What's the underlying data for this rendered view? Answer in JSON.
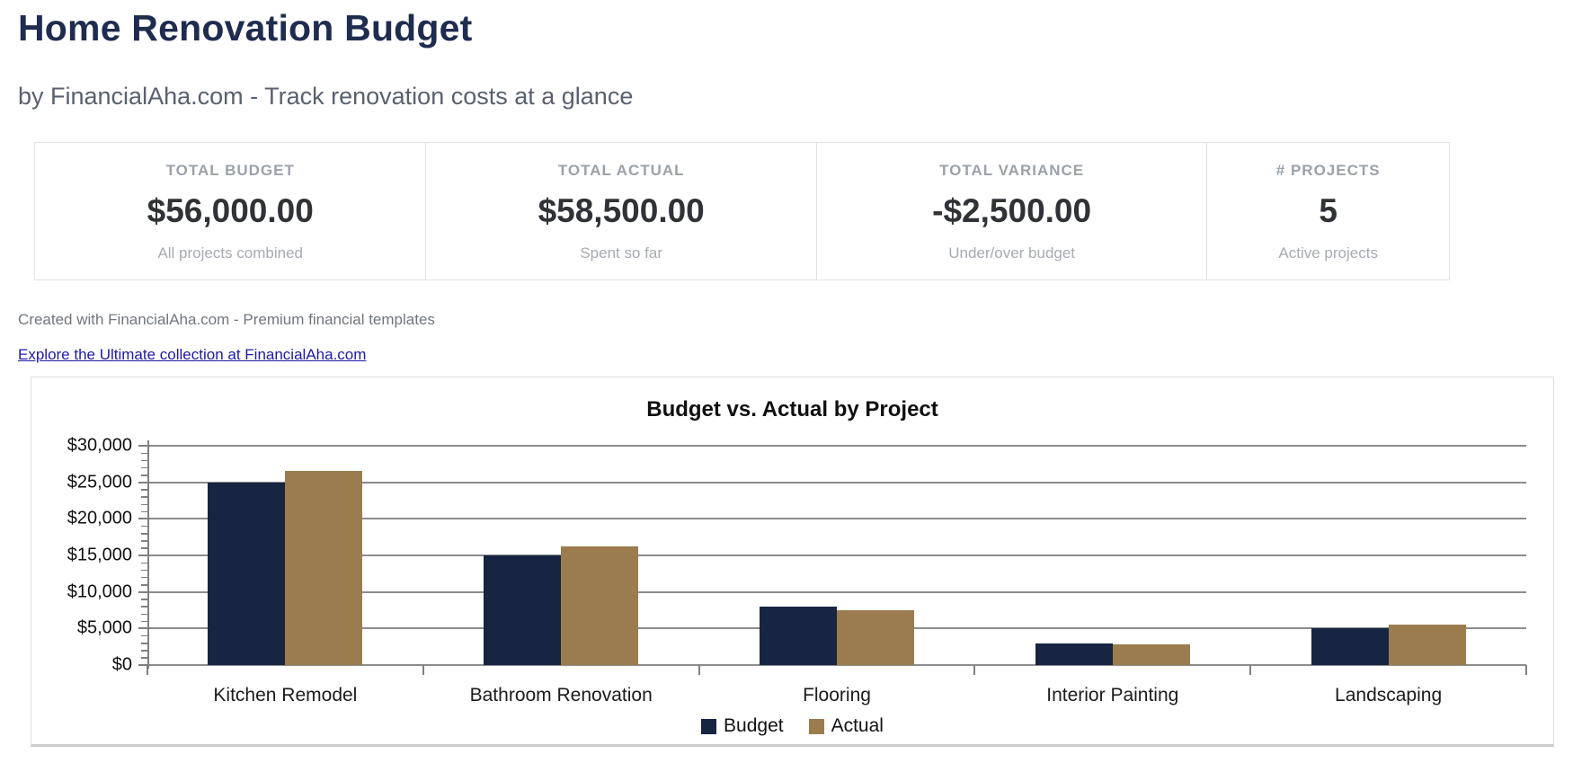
{
  "page": {
    "title": "Home Renovation Budget",
    "subtitle": "by FinancialAha.com - Track renovation costs at a glance",
    "credit": "Created with FinancialAha.com - Premium financial templates",
    "link_text": "Explore the Ultimate collection at FinancialAha.com"
  },
  "stats": [
    {
      "label": "TOTAL BUDGET",
      "value": "$56,000.00",
      "caption": "All projects combined"
    },
    {
      "label": "TOTAL ACTUAL",
      "value": "$58,500.00",
      "caption": "Spent so far"
    },
    {
      "label": "TOTAL VARIANCE",
      "value": "-$2,500.00",
      "caption": "Under/over budget"
    },
    {
      "label": "# PROJECTS",
      "value": "5",
      "caption": "Active projects"
    }
  ],
  "colors": {
    "title_navy": "#1f2c4f",
    "budget_bar": "#172442",
    "actual_bar": "#9b7c4e",
    "link_blue": "#1d1aa6",
    "gridline_gray": "#8c8c8c"
  },
  "chart_data": {
    "type": "bar",
    "title": "Budget vs. Actual by Project",
    "categories": [
      "Kitchen Remodel",
      "Bathroom Renovation",
      "Flooring",
      "Interior Painting",
      "Landscaping"
    ],
    "series": [
      {
        "name": "Budget",
        "color": "#172442",
        "values": [
          25000,
          15000,
          8000,
          3000,
          5000
        ]
      },
      {
        "name": "Actual",
        "color": "#9b7c4e",
        "values": [
          26500,
          16200,
          7500,
          2800,
          5500
        ]
      }
    ],
    "xlabel": "",
    "ylabel": "",
    "ylim": [
      0,
      30000
    ],
    "ytick_step": 5000,
    "minor_tick_step": 1000,
    "ytick_labels": [
      "$0",
      "$5,000",
      "$10,000",
      "$15,000",
      "$20,000",
      "$25,000",
      "$30,000"
    ],
    "grid": true,
    "legend_position": "bottom"
  }
}
